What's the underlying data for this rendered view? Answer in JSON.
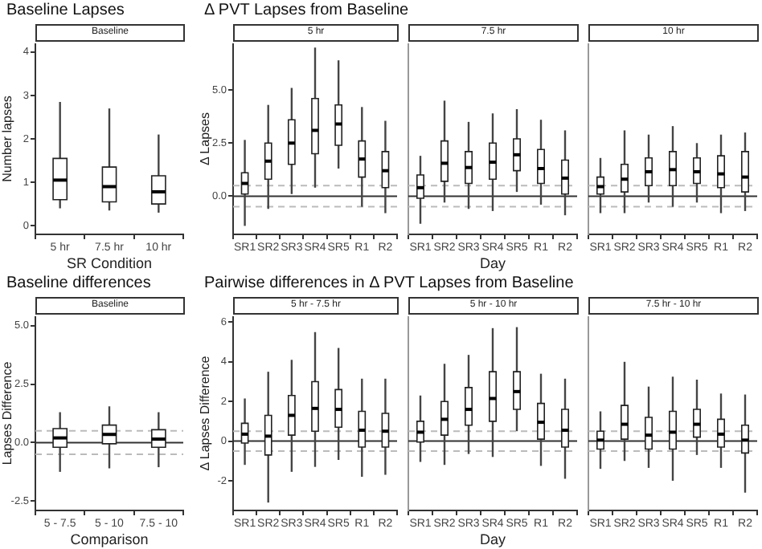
{
  "chart_data": [
    {
      "type": "box",
      "title": "Baseline Lapses",
      "subtitle": "Baseline",
      "xlabel": "SR Condition",
      "ylabel": "Number lapses",
      "categories": [
        "5 hr",
        "7.5 hr",
        "10 hr"
      ],
      "ylim": [
        -0.2,
        4.2
      ],
      "yticks": [
        0,
        1,
        2,
        3,
        4
      ],
      "boxes": [
        {
          "low": 0.4,
          "q1": 0.6,
          "median": 1.05,
          "q3": 1.55,
          "high": 2.85
        },
        {
          "low": 0.35,
          "q1": 0.55,
          "median": 0.9,
          "q3": 1.35,
          "high": 2.7
        },
        {
          "low": 0.3,
          "q1": 0.5,
          "median": 0.78,
          "q3": 1.15,
          "high": 2.1
        }
      ]
    },
    {
      "type": "box",
      "title": "Δ PVT Lapses from Baseline",
      "subtitle": "5 hr",
      "ylabel": "Δ Lapses",
      "categories": [
        "SR1",
        "SR2",
        "SR3",
        "SR4",
        "SR5",
        "R1",
        "R2"
      ],
      "ylim": [
        -1.8,
        7.2
      ],
      "yticks": [
        {
          "value": 0,
          "label": "0.0"
        },
        {
          "value": 2.5,
          "label": "2.5"
        },
        {
          "value": 5,
          "label": "5.0"
        }
      ],
      "ref_lines": [
        {
          "axis": "y",
          "value": 0,
          "color": "#333333",
          "line_style": "solid"
        },
        {
          "axis": "y",
          "value": 0.5,
          "color": "#bbbbbb",
          "line_style": "dashed"
        },
        {
          "axis": "y",
          "value": -0.5,
          "color": "#bbbbbb",
          "line_style": "dashed"
        }
      ],
      "boxes": [
        {
          "low": -1.4,
          "q1": 0.1,
          "median": 0.6,
          "q3": 1.1,
          "high": 2.65
        },
        {
          "low": -0.6,
          "q1": 0.8,
          "median": 1.65,
          "q3": 2.5,
          "high": 4.3
        },
        {
          "low": 0.1,
          "q1": 1.5,
          "median": 2.5,
          "q3": 3.6,
          "high": 5.1
        },
        {
          "low": 0.4,
          "q1": 2.0,
          "median": 3.1,
          "q3": 4.6,
          "high": 7.0
        },
        {
          "low": 1.3,
          "q1": 2.4,
          "median": 3.4,
          "q3": 4.3,
          "high": 6.4
        },
        {
          "low": -0.5,
          "q1": 0.9,
          "median": 1.75,
          "q3": 2.6,
          "high": 4.2
        },
        {
          "low": -0.8,
          "q1": 0.4,
          "median": 1.2,
          "q3": 2.1,
          "high": 3.55
        }
      ]
    },
    {
      "type": "box",
      "subtitle": "7.5 hr",
      "xlabel": "Day",
      "tick_labels": "x",
      "categories": [
        "SR1",
        "SR2",
        "SR3",
        "SR4",
        "SR5",
        "R1",
        "R2"
      ],
      "ylim": [
        -1.8,
        7.2
      ],
      "ref_lines": [
        {
          "axis": "y",
          "value": 0,
          "color": "#333333",
          "line_style": "solid"
        },
        {
          "axis": "y",
          "value": 0.5,
          "color": "#bbbbbb",
          "line_style": "dashed"
        },
        {
          "axis": "y",
          "value": -0.5,
          "color": "#bbbbbb",
          "line_style": "dashed"
        }
      ],
      "boxes": [
        {
          "low": -1.3,
          "q1": -0.1,
          "median": 0.4,
          "q3": 1.0,
          "high": 1.9
        },
        {
          "low": -0.3,
          "q1": 0.7,
          "median": 1.55,
          "q3": 2.6,
          "high": 4.5
        },
        {
          "low": -0.6,
          "q1": 0.6,
          "median": 1.35,
          "q3": 2.1,
          "high": 3.5
        },
        {
          "low": -0.7,
          "q1": 0.8,
          "median": 1.6,
          "q3": 2.5,
          "high": 3.9
        },
        {
          "low": 0.2,
          "q1": 1.2,
          "median": 1.95,
          "q3": 2.7,
          "high": 4.1
        },
        {
          "low": -0.4,
          "q1": 0.6,
          "median": 1.3,
          "q3": 2.2,
          "high": 3.6
        },
        {
          "low": -0.9,
          "q1": 0.1,
          "median": 0.85,
          "q3": 1.7,
          "high": 3.1
        }
      ]
    },
    {
      "type": "box",
      "subtitle": "10 hr",
      "tick_labels": "x",
      "categories": [
        "SR1",
        "SR2",
        "SR3",
        "SR4",
        "SR5",
        "R1",
        "R2"
      ],
      "ylim": [
        -1.8,
        7.2
      ],
      "ref_lines": [
        {
          "axis": "y",
          "value": 0,
          "color": "#333333",
          "line_style": "solid"
        },
        {
          "axis": "y",
          "value": 0.5,
          "color": "#bbbbbb",
          "line_style": "dashed"
        },
        {
          "axis": "y",
          "value": -0.5,
          "color": "#bbbbbb",
          "line_style": "dashed"
        }
      ],
      "boxes": [
        {
          "low": -0.8,
          "q1": 0.1,
          "median": 0.45,
          "q3": 0.9,
          "high": 1.8
        },
        {
          "low": -0.8,
          "q1": 0.2,
          "median": 0.8,
          "q3": 1.5,
          "high": 3.1
        },
        {
          "low": -0.3,
          "q1": 0.5,
          "median": 1.15,
          "q3": 1.8,
          "high": 2.9
        },
        {
          "low": -0.5,
          "q1": 0.5,
          "median": 1.25,
          "q3": 2.1,
          "high": 3.3
        },
        {
          "low": -0.3,
          "q1": 0.6,
          "median": 1.15,
          "q3": 1.8,
          "high": 2.5
        },
        {
          "low": -0.8,
          "q1": 0.4,
          "median": 1.05,
          "q3": 1.9,
          "high": 2.9
        },
        {
          "low": -0.7,
          "q1": 0.2,
          "median": 0.9,
          "q3": 2.1,
          "high": 3.0
        }
      ]
    },
    {
      "type": "box",
      "title": "Baseline differences",
      "subtitle": "Baseline",
      "xlabel": "Comparison",
      "ylabel": "Lapses Difference",
      "categories": [
        "5 - 7.5",
        "5 - 10",
        "7.5 - 10"
      ],
      "ylim": [
        -2.9,
        5.4
      ],
      "yticks": [
        -2.5,
        {
          "value": 0,
          "label": "0.0"
        },
        2.5,
        {
          "value": 5,
          "label": "5.0"
        }
      ],
      "ref_lines": [
        {
          "axis": "y",
          "value": 0,
          "color": "#333333",
          "line_style": "solid"
        },
        {
          "axis": "y",
          "value": 0.5,
          "color": "#bbbbbb",
          "line_style": "dashed"
        },
        {
          "axis": "y",
          "value": -0.5,
          "color": "#bbbbbb",
          "line_style": "dashed"
        }
      ],
      "boxes": [
        {
          "low": -1.25,
          "q1": -0.2,
          "median": 0.2,
          "q3": 0.6,
          "high": 1.3
        },
        {
          "low": -1.1,
          "q1": -0.05,
          "median": 0.35,
          "q3": 0.75,
          "high": 1.55
        },
        {
          "low": -1.05,
          "q1": -0.2,
          "median": 0.15,
          "q3": 0.55,
          "high": 1.3
        }
      ]
    },
    {
      "type": "box",
      "title": "Pairwise differences in Δ PVT Lapses from Baseline",
      "subtitle": "5 hr - 7.5 hr",
      "ylabel": "Δ Lapses Difference",
      "categories": [
        "SR1",
        "SR2",
        "SR3",
        "SR4",
        "SR5",
        "R1",
        "R2"
      ],
      "ylim": [
        -3.5,
        6.3
      ],
      "yticks": [
        -2,
        0,
        2,
        4,
        6
      ],
      "ref_lines": [
        {
          "axis": "y",
          "value": 0,
          "color": "#333333",
          "line_style": "solid"
        },
        {
          "axis": "y",
          "value": 0.5,
          "color": "#bbbbbb",
          "line_style": "dashed"
        },
        {
          "axis": "y",
          "value": -0.5,
          "color": "#bbbbbb",
          "line_style": "dashed"
        }
      ],
      "boxes": [
        {
          "low": -1.2,
          "q1": -0.1,
          "median": 0.35,
          "q3": 0.9,
          "high": 2.15
        },
        {
          "low": -3.1,
          "q1": -0.7,
          "median": 0.25,
          "q3": 1.3,
          "high": 3.5
        },
        {
          "low": -1.55,
          "q1": 0.3,
          "median": 1.3,
          "q3": 2.3,
          "high": 4.1
        },
        {
          "low": -1.3,
          "q1": 0.5,
          "median": 1.65,
          "q3": 3.0,
          "high": 5.5
        },
        {
          "low": -0.95,
          "q1": 0.7,
          "median": 1.6,
          "q3": 2.6,
          "high": 4.7
        },
        {
          "low": -1.8,
          "q1": -0.3,
          "median": 0.55,
          "q3": 1.5,
          "high": 3.15
        },
        {
          "low": -1.7,
          "q1": -0.3,
          "median": 0.5,
          "q3": 1.4,
          "high": 3.15
        }
      ]
    },
    {
      "type": "box",
      "subtitle": "5 hr - 10 hr",
      "xlabel": "Day",
      "tick_labels": "x",
      "categories": [
        "SR1",
        "SR2",
        "SR3",
        "SR4",
        "SR5",
        "R1",
        "R2"
      ],
      "ylim": [
        -3.5,
        6.3
      ],
      "ref_lines": [
        {
          "axis": "y",
          "value": 0,
          "color": "#333333",
          "line_style": "solid"
        },
        {
          "axis": "y",
          "value": 0.5,
          "color": "#bbbbbb",
          "line_style": "dashed"
        },
        {
          "axis": "y",
          "value": -0.5,
          "color": "#bbbbbb",
          "line_style": "dashed"
        }
      ],
      "boxes": [
        {
          "low": -1.05,
          "q1": -0.05,
          "median": 0.45,
          "q3": 1.0,
          "high": 2.3
        },
        {
          "low": -1.2,
          "q1": 0.3,
          "median": 1.1,
          "q3": 2.0,
          "high": 3.9
        },
        {
          "low": -0.65,
          "q1": 0.8,
          "median": 1.6,
          "q3": 2.7,
          "high": 4.35
        },
        {
          "low": -0.8,
          "q1": 1.0,
          "median": 2.15,
          "q3": 3.5,
          "high": 5.7
        },
        {
          "low": 0.5,
          "q1": 1.6,
          "median": 2.5,
          "q3": 3.5,
          "high": 5.75
        },
        {
          "low": -1.25,
          "q1": 0.1,
          "median": 0.95,
          "q3": 1.9,
          "high": 3.4
        },
        {
          "low": -1.9,
          "q1": -0.3,
          "median": 0.55,
          "q3": 1.6,
          "high": 3.15
        }
      ]
    },
    {
      "type": "box",
      "subtitle": "7.5 hr - 10 hr",
      "tick_labels": "x",
      "categories": [
        "SR1",
        "SR2",
        "SR3",
        "SR4",
        "SR5",
        "R1",
        "R2"
      ],
      "ylim": [
        -3.5,
        6.3
      ],
      "ref_lines": [
        {
          "axis": "y",
          "value": 0,
          "color": "#333333",
          "line_style": "solid"
        },
        {
          "axis": "y",
          "value": 0.5,
          "color": "#bbbbbb",
          "line_style": "dashed"
        },
        {
          "axis": "y",
          "value": -0.5,
          "color": "#bbbbbb",
          "line_style": "dashed"
        }
      ],
      "boxes": [
        {
          "low": -1.4,
          "q1": -0.4,
          "median": 0.05,
          "q3": 0.5,
          "high": 1.5
        },
        {
          "low": -1.0,
          "q1": 0.1,
          "median": 0.85,
          "q3": 1.8,
          "high": 4.0
        },
        {
          "low": -1.35,
          "q1": -0.4,
          "median": 0.3,
          "q3": 1.2,
          "high": 2.75
        },
        {
          "low": -2.0,
          "q1": -0.4,
          "median": 0.45,
          "q3": 1.5,
          "high": 3.25
        },
        {
          "low": -0.7,
          "q1": 0.2,
          "median": 0.85,
          "q3": 1.6,
          "high": 3.1
        },
        {
          "low": -1.35,
          "q1": -0.3,
          "median": 0.35,
          "q3": 1.1,
          "high": 2.4
        },
        {
          "low": -2.6,
          "q1": -0.6,
          "median": 0.05,
          "q3": 0.8,
          "high": 2.35
        }
      ]
    }
  ]
}
